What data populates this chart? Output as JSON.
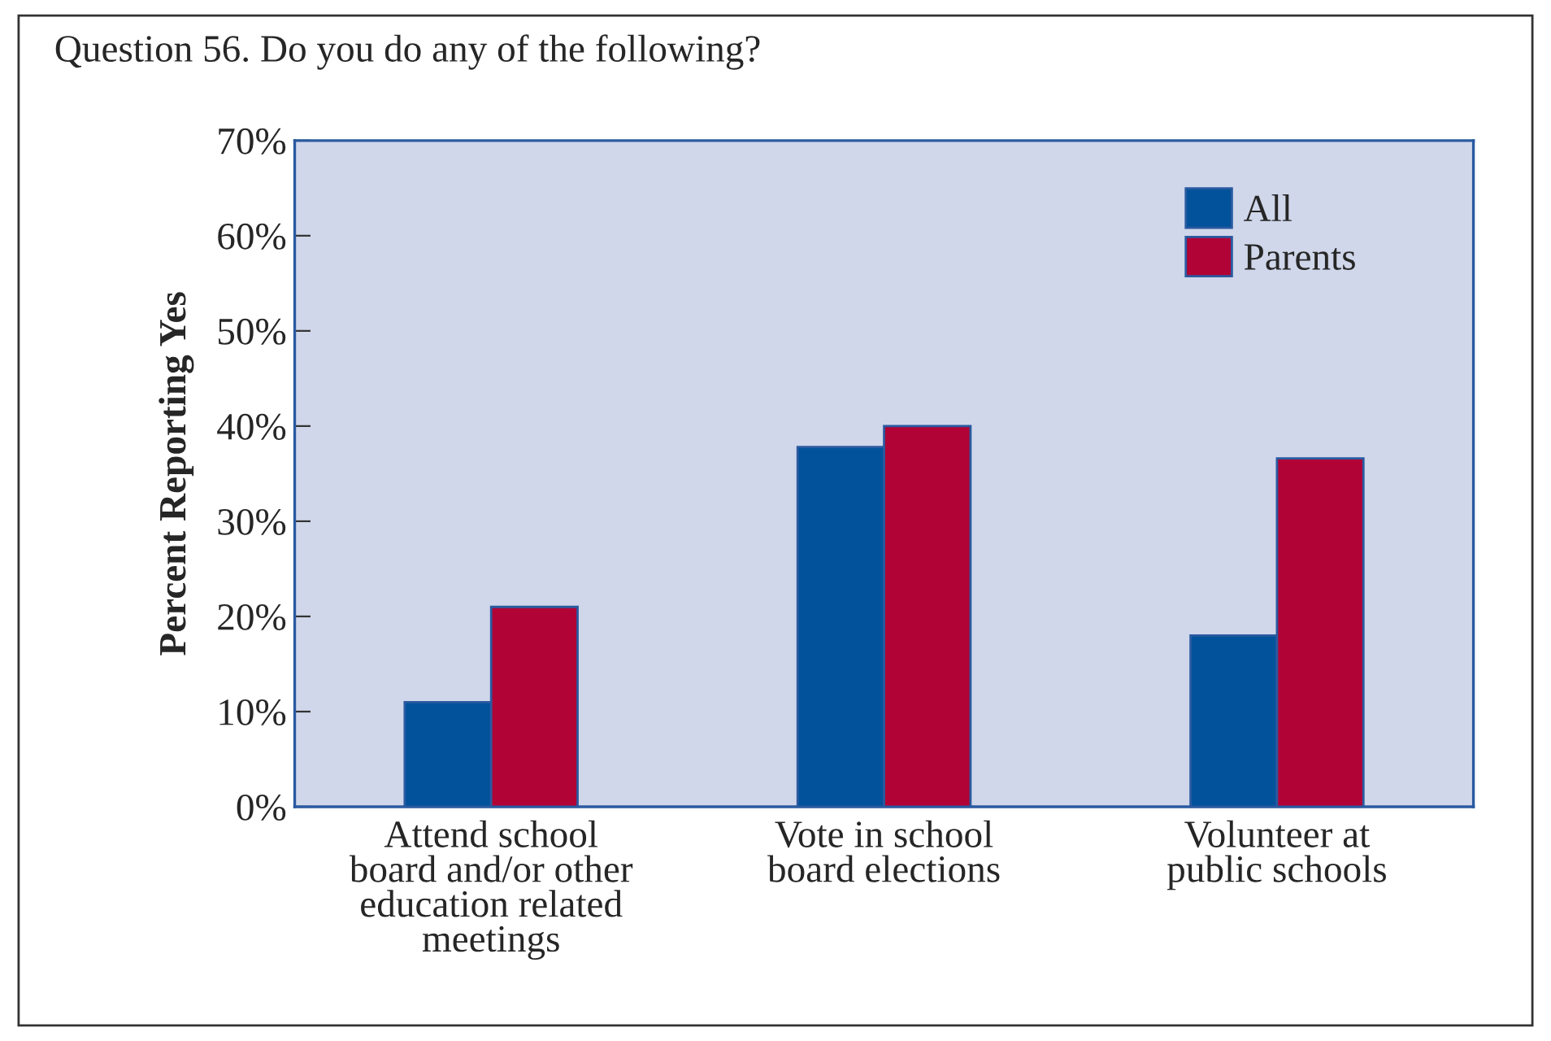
{
  "chart_data": {
    "type": "bar",
    "title": "Question 56. Do you do any of the following?",
    "ylabel": "Percent Reporting Yes",
    "categories": [
      "Attend school\nboard and/or other\neducation related\nmeetings",
      "Vote in school\nboard elections",
      "Volunteer at\npublic schools"
    ],
    "series": [
      {
        "name": "All",
        "color": "#01529b",
        "values": [
          11,
          37.8,
          18
        ]
      },
      {
        "name": "Parents",
        "color": "#b10335",
        "values": [
          21,
          40,
          36.6
        ]
      }
    ],
    "ylim": [
      0,
      70
    ],
    "yticks": [
      {
        "value": 0,
        "label": "0%"
      },
      {
        "value": 10,
        "label": "10%"
      },
      {
        "value": 20,
        "label": "20%"
      },
      {
        "value": 30,
        "label": "30%"
      },
      {
        "value": 40,
        "label": "40%"
      },
      {
        "value": 50,
        "label": "50%"
      },
      {
        "value": 60,
        "label": "60%"
      },
      {
        "value": 70,
        "label": "70%"
      }
    ],
    "legend": "top right",
    "grid": false
  }
}
